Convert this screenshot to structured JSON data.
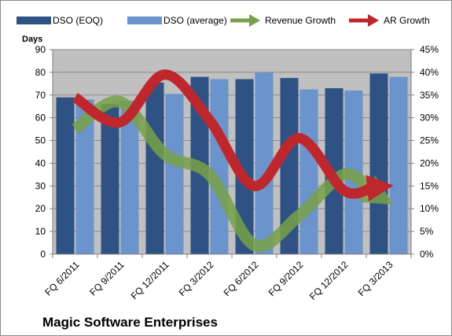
{
  "chart_data": {
    "type": "bar",
    "title": "Magic Software Enterprises",
    "ylabel": "Days",
    "y2label": "",
    "xlabel": "",
    "categories": [
      "FQ 6/2011",
      "FQ 9/2011",
      "FQ 12/2011",
      "FQ 3/2012",
      "FQ 6/2012",
      "FQ 9/2012",
      "FQ 12/2012",
      "FQ 3/2013"
    ],
    "ylim": [
      0,
      90
    ],
    "yticks": [
      "0",
      "10",
      "20",
      "30",
      "40",
      "50",
      "60",
      "70",
      "80",
      "90"
    ],
    "y2lim": [
      0,
      45
    ],
    "y2ticks": [
      "0%",
      "5%",
      "10%",
      "15%",
      "20%",
      "25%",
      "30%",
      "35%",
      "40%",
      "45%"
    ],
    "legend_position": "top",
    "grid": "horizontal",
    "plot_background": "#c0c0c0",
    "series": [
      {
        "name": "DSO (EOQ)",
        "kind": "bar",
        "axis": "left",
        "color": "#2e5283",
        "values": [
          69,
          66,
          75.5,
          78,
          77,
          77.5,
          73,
          79.5
        ]
      },
      {
        "name": "DSO (average)",
        "kind": "bar",
        "axis": "left",
        "color": "#6b93cc",
        "values": [
          68,
          67.5,
          70.5,
          77,
          80,
          72.5,
          72,
          78
        ]
      },
      {
        "name": "Revenue Growth",
        "kind": "line",
        "axis": "right",
        "color": "#77a146",
        "values": [
          27.5,
          33.5,
          22,
          17.5,
          2,
          8.5,
          17.5,
          11.5
        ]
      },
      {
        "name": "AR Growth",
        "kind": "line",
        "axis": "right",
        "color": "#c0272d",
        "values": [
          34.5,
          29,
          39.5,
          29.5,
          15,
          25.5,
          14,
          15
        ]
      }
    ]
  }
}
